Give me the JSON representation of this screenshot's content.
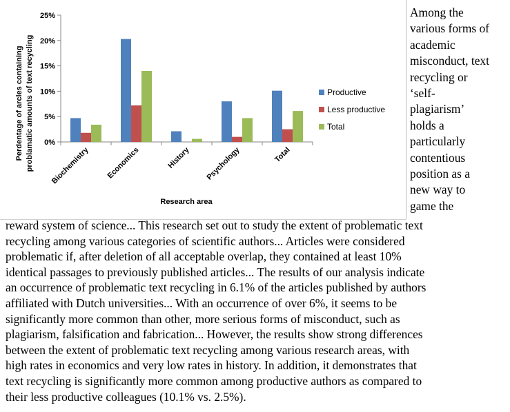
{
  "chart_data": {
    "type": "bar",
    "categories": [
      "Biochemistry",
      "Economics",
      "History",
      "Psychology",
      "Total"
    ],
    "series": [
      {
        "name": "Productive",
        "color": "#4f81bd",
        "values": [
          4.7,
          20.3,
          2.1,
          8.0,
          10.1
        ]
      },
      {
        "name": "Less productive",
        "color": "#c0504d",
        "values": [
          1.8,
          7.2,
          0.0,
          1.0,
          2.5
        ]
      },
      {
        "name": "Total",
        "color": "#9bbb59",
        "values": [
          3.4,
          14.0,
          0.6,
          4.7,
          6.1
        ]
      }
    ],
    "ylim": [
      0,
      25
    ],
    "yticks": [
      "0%",
      "5%",
      "10%",
      "15%",
      "20%",
      "25%"
    ],
    "ytick_values": [
      0,
      5,
      10,
      15,
      20,
      25
    ],
    "xlabel": "Research area",
    "ylabel_lines": [
      "Perdentage of arcles containing",
      "problamatic amounts of text recycling"
    ],
    "legend_position": "right",
    "grid": false
  },
  "side_text_lines": [
    "Among the",
    "various forms of",
    "academic",
    "misconduct, text",
    "recycling or",
    "‘self-",
    "plagiarism’",
    "holds a",
    "particularly",
    "contentious",
    "position as a",
    "new way to",
    "game the"
  ],
  "body_text_lines": [
    "reward system of science... This research set out to study the extent of problematic text",
    "recycling among various categories of scientific authors... Articles were considered",
    "problematic if, after deletion of all acceptable overlap, they contained at least 10%",
    "identical passages to previously published articles... The results of our analysis indicate",
    "an occurrence of problematic text recycling in 6.1% of the articles published by authors",
    "affiliated with Dutch universities...  With an occurrence of over 6%, it seems to be",
    "significantly more common than other, more serious forms of misconduct, such as",
    "plagiarism, falsification and fabrication... However, the results show strong differences",
    "between the extent of problematic text recycling among various research areas, with",
    "high rates in economics and very low rates in history. In addition, it demonstrates that",
    "text recycling is significantly more common among productive authors as compared to",
    "their less productive colleagues (10.1% vs. 2.5%)."
  ]
}
